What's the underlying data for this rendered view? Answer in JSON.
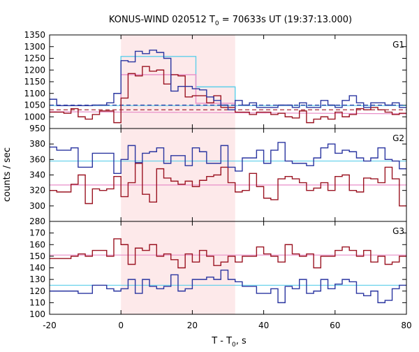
{
  "chart_data": {
    "type": "line",
    "title_main": "KONUS-WIND 020512 T",
    "title_sub": "0",
    "title_rest": " = 70633s UT (19:37:13.000)",
    "xlabel_main": "T - T",
    "xlabel_sub": "0",
    "xlabel_rest": ", s",
    "ylabel": "counts / sec",
    "xlim": [
      -20,
      80
    ],
    "xticks": [
      "-20",
      "0",
      "20",
      "40",
      "60",
      "80"
    ],
    "shade": [
      0,
      32
    ],
    "colors": {
      "blue": "#2a35a0",
      "red": "#9b1422",
      "cyan": "#5ecfea",
      "pink": "#e88ec8",
      "shade": "#fde9ea"
    },
    "panels": [
      {
        "label": "G1",
        "ylim": [
          950,
          1350
        ],
        "yticks": [
          "950",
          "1000",
          "1050",
          "1100",
          "1150",
          "1200",
          "1250",
          "1300",
          "1350"
        ],
        "blue": [
          1075,
          1048,
          1048,
          1048,
          1048,
          1048,
          1050,
          1050,
          1060,
          1100,
          1240,
          1235,
          1280,
          1270,
          1285,
          1275,
          1250,
          1110,
          1130,
          1130,
          1120,
          1115,
          1085,
          1070,
          1050,
          1030,
          1070,
          1050,
          1060,
          1040,
          1040,
          1040,
          1050,
          1050,
          1040,
          1060,
          1040,
          1040,
          1070,
          1050,
          1040,
          1070,
          1090,
          1060,
          1040,
          1060,
          1060,
          1050,
          1060,
          1040
        ],
        "red": [
          1020,
          1020,
          1015,
          1035,
          1000,
          990,
          1010,
          1025,
          1025,
          975,
          1080,
          1185,
          1175,
          1215,
          1195,
          1200,
          1140,
          1180,
          1175,
          1085,
          1090,
          1090,
          1060,
          1090,
          1040,
          1040,
          1020,
          1020,
          1010,
          1020,
          1020,
          1010,
          1015,
          1000,
          995,
          1025,
          975,
          990,
          1000,
          990,
          1020,
          1000,
          1010,
          1035,
          1030,
          1040,
          1030,
          1020,
          1010,
          1015
        ],
        "fit_blue": {
          "x": [
            -20,
            80
          ],
          "y": [
            1048,
            1048
          ]
        },
        "fit_red": {
          "x": [
            -20,
            80
          ],
          "y": [
            1022,
            1013
          ]
        },
        "dash_blue": {
          "x": [
            -20,
            80
          ],
          "y": [
            1050,
            1050
          ]
        },
        "dash_red": {
          "x": [
            -20,
            80
          ],
          "y": [
            1030,
            1030
          ]
        },
        "model_blue": [
          [
            0,
            1050
          ],
          [
            0,
            1258
          ],
          [
            21,
            1258
          ],
          [
            21,
            1128
          ],
          [
            32,
            1128
          ],
          [
            32,
            1050
          ]
        ],
        "model_red": [
          [
            0,
            1022
          ],
          [
            0,
            1180
          ],
          [
            21,
            1180
          ],
          [
            21,
            1058
          ],
          [
            32,
            1058
          ],
          [
            32,
            1018
          ]
        ]
      },
      {
        "label": "G2",
        "ylim": [
          280,
          400
        ],
        "yticks": [
          "280",
          "300",
          "320",
          "340",
          "360",
          "380"
        ],
        "blue": [
          376,
          372,
          372,
          375,
          350,
          350,
          368,
          368,
          368,
          342,
          360,
          378,
          356,
          368,
          370,
          375,
          355,
          365,
          365,
          352,
          375,
          370,
          355,
          355,
          378,
          350,
          345,
          362,
          362,
          372,
          355,
          372,
          382,
          358,
          355,
          355,
          352,
          362,
          375,
          380,
          368,
          372,
          370,
          362,
          358,
          362,
          375,
          360,
          358,
          348
        ],
        "red": [
          320,
          318,
          318,
          328,
          340,
          303,
          322,
          320,
          322,
          338,
          312,
          330,
          355,
          315,
          305,
          348,
          336,
          332,
          328,
          332,
          325,
          333,
          338,
          340,
          350,
          330,
          318,
          320,
          342,
          325,
          310,
          308,
          335,
          338,
          335,
          330,
          320,
          323,
          330,
          320,
          338,
          340,
          320,
          318,
          336,
          335,
          330,
          350,
          335,
          300
        ],
        "fit_blue": {
          "x": [
            -20,
            80
          ],
          "y": [
            358,
            358
          ]
        },
        "fit_red": {
          "x": [
            -20,
            80
          ],
          "y": [
            327,
            327
          ]
        }
      },
      {
        "label": "G3",
        "ylim": [
          100,
          180
        ],
        "yticks": [
          "100",
          "110",
          "120",
          "130",
          "140",
          "150",
          "160",
          "170"
        ],
        "blue": [
          120,
          120,
          120,
          120,
          118,
          118,
          125,
          125,
          122,
          120,
          122,
          130,
          118,
          130,
          124,
          122,
          124,
          134,
          120,
          122,
          130,
          130,
          132,
          130,
          138,
          130,
          128,
          124,
          124,
          118,
          118,
          122,
          110,
          124,
          122,
          130,
          118,
          120,
          130,
          122,
          126,
          130,
          128,
          118,
          116,
          120,
          110,
          112,
          122,
          125
        ],
        "red": [
          148,
          148,
          148,
          150,
          152,
          150,
          155,
          155,
          150,
          165,
          160,
          143,
          157,
          155,
          160,
          150,
          152,
          147,
          140,
          152,
          145,
          155,
          150,
          142,
          145,
          150,
          145,
          150,
          150,
          158,
          152,
          150,
          145,
          160,
          152,
          150,
          152,
          140,
          150,
          150,
          155,
          158,
          155,
          150,
          155,
          145,
          150,
          143,
          145,
          150
        ],
        "fit_blue": {
          "x": [
            -20,
            80
          ],
          "y": [
            125,
            125
          ]
        },
        "fit_red": {
          "x": [
            -20,
            80
          ],
          "y": [
            151,
            151
          ]
        }
      }
    ]
  }
}
